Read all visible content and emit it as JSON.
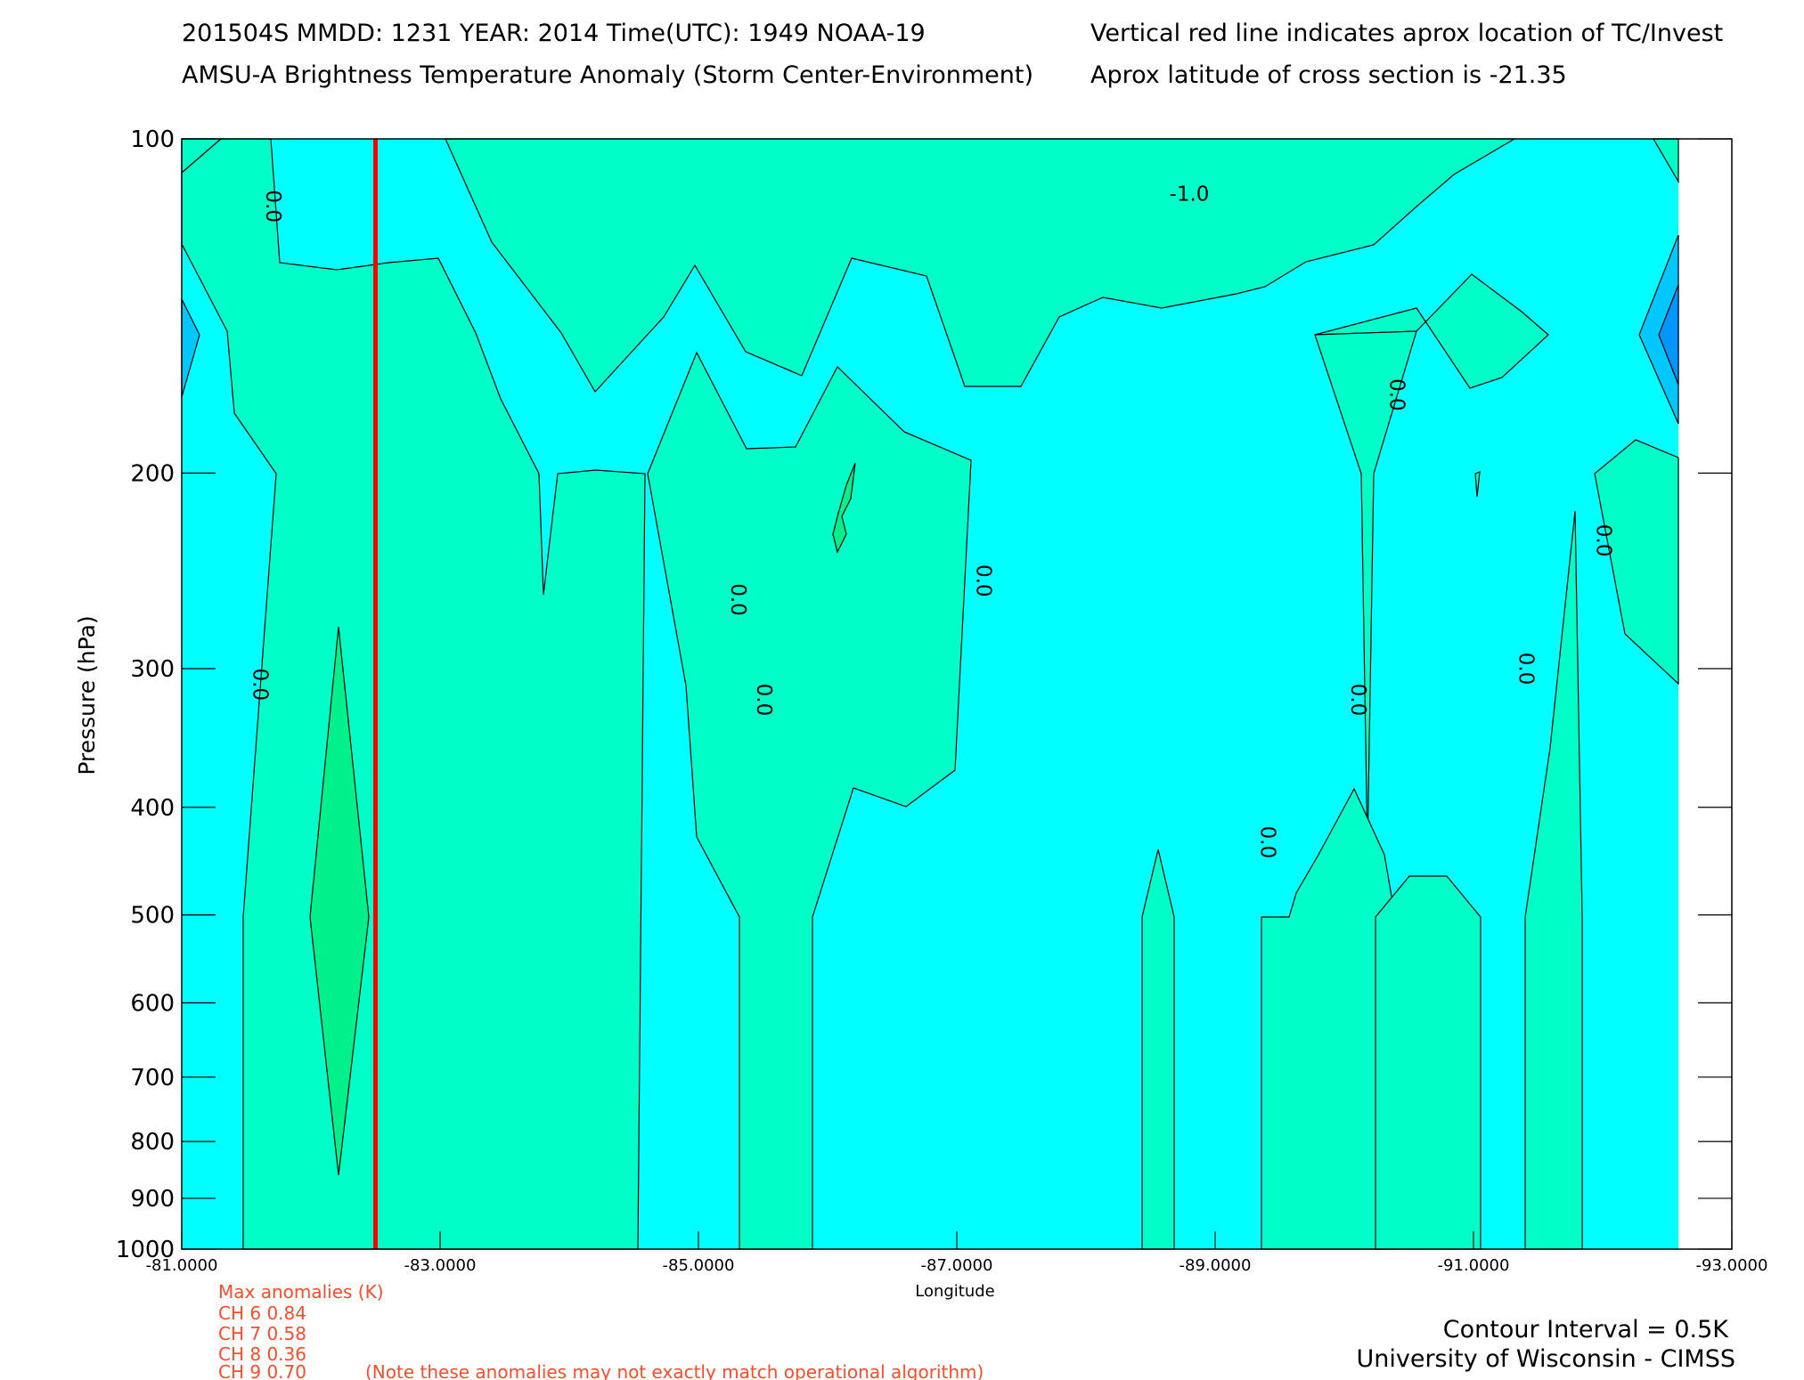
{
  "header": {
    "line1_left": "201504S  MMDD: 1231 YEAR: 2014 Time(UTC): 1949 NOAA-19",
    "line2_left": "AMSU-A Brightness Temperature Anomaly (Storm Center-Environment)",
    "line1_right": "Vertical red line indicates aprox location of TC/Invest",
    "line2_right": "Aprox latitude of cross section is -21.35"
  },
  "colors": {
    "background": "#00ffff",
    "warm_fill": "#00ffc8",
    "warmer_fill": "#00f08c",
    "cool_fill": "#00c8ff",
    "cold_fill": "#0096ff",
    "red_line": "#ff0000",
    "anomaly_text": "#ff4b2b"
  },
  "chart_data": {
    "type": "contour",
    "title": "AMSU-A Brightness Temperature Anomaly (Storm Center-Environment)",
    "xlabel": "Longitude",
    "ylabel": "Pressure (hPa)",
    "xlim": [
      -81.0,
      -93.0
    ],
    "ylim": [
      1000,
      100
    ],
    "y_scale": "log",
    "x_ticks": [
      -81.0,
      -83.0,
      -85.0,
      -87.0,
      -89.0,
      -91.0,
      -93.0
    ],
    "x_tick_labels": [
      "-81.0000",
      "-83.0000",
      "-85.0000",
      "-87.0000",
      "-89.0000",
      "-91.0000",
      "-93.0000"
    ],
    "y_ticks": [
      100,
      200,
      300,
      400,
      500,
      600,
      700,
      800,
      900,
      1000
    ],
    "y_tick_labels": [
      "100",
      "200",
      "300",
      "400",
      "500",
      "600",
      "700",
      "800",
      "900",
      "1000"
    ],
    "contour_interval_K": 0.5,
    "contour_labels": [
      {
        "text": "0.0",
        "lon": -81.6,
        "p": 115
      },
      {
        "text": "0.0",
        "lon": -81.5,
        "p": 310
      },
      {
        "text": "0.0",
        "lon": -85.4,
        "p": 320
      },
      {
        "text": "0.0",
        "lon": -85.2,
        "p": 260
      },
      {
        "text": "0.0",
        "lon": -87.1,
        "p": 250
      },
      {
        "text": "-1.0",
        "lon": -88.8,
        "p": 112
      },
      {
        "text": "0.0",
        "lon": -90.3,
        "p": 170
      },
      {
        "text": "0.0",
        "lon": -90.0,
        "p": 320
      },
      {
        "text": "0.0",
        "lon": -89.3,
        "p": 430
      },
      {
        "text": "0.0",
        "lon": -91.3,
        "p": 300
      },
      {
        "text": "0.0",
        "lon": -91.9,
        "p": 230
      }
    ],
    "tc_longitude": -82.5,
    "region_levels": [
      {
        "name": "below -1.0",
        "color": "#00c8ff"
      },
      {
        "name": "-1.0 to 0.0",
        "color": "#00ffff"
      },
      {
        "name": "0.0 to 0.5",
        "color": "#00ffc8"
      },
      {
        "name": "above 0.5",
        "color": "#00f08c"
      }
    ]
  },
  "anomalies": {
    "title": "Max anomalies (K)",
    "rows": [
      "CH 6  0.84",
      "CH 7  0.58",
      "CH 8  0.36",
      "CH 9  0.70"
    ],
    "note": "(Note these anomalies may not exactly match operational algorithm)"
  },
  "footer": {
    "contour_interval": "Contour Interval = 0.5K",
    "credit": "University of Wisconsin - CIMSS"
  }
}
